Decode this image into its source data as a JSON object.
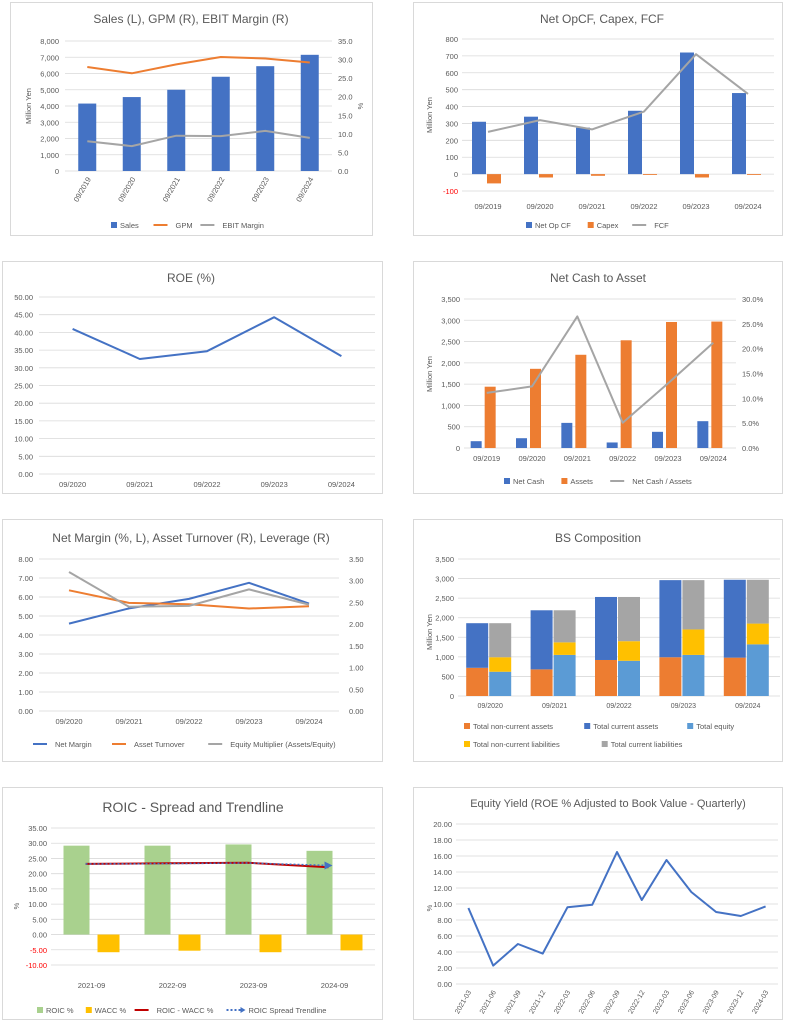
{
  "colors": {
    "blue": "#4472c4",
    "orange": "#ed7d31",
    "gray": "#a5a5a5",
    "yellow": "#ffc000",
    "lightblue": "#5b9bd5",
    "green": "#a9d18e",
    "red": "#c00000",
    "grid": "#d9d9d9",
    "text": "#595959",
    "negative": "#ff0000"
  },
  "chart_data": [
    {
      "id": "c1",
      "type": "bar",
      "title": "Sales (L), GPM (R), EBIT Margin (R)",
      "ylabel": "Million Yen",
      "y2label": "%",
      "categories": [
        "09/2019",
        "09/2020",
        "09/2021",
        "09/2022",
        "09/2023",
        "09/2024"
      ],
      "ylim": [
        0,
        8000
      ],
      "y2lim": [
        0,
        35
      ],
      "yticks": [
        "0",
        "1,000",
        "2,000",
        "3,000",
        "4,000",
        "5,000",
        "6,000",
        "7,000",
        "8,000"
      ],
      "y2ticks": [
        "0.0",
        "5.0",
        "10.0",
        "15.0",
        "20.0",
        "25.0",
        "30.0",
        "35.0"
      ],
      "series": [
        {
          "name": "Sales",
          "kind": "bar",
          "axis": "left",
          "color": "#4472c4",
          "values": [
            4150,
            4550,
            5000,
            5800,
            6450,
            7150
          ]
        },
        {
          "name": "GPM",
          "kind": "line",
          "axis": "right",
          "color": "#ed7d31",
          "values": [
            28.0,
            26.3,
            28.7,
            30.7,
            30.3,
            29.2
          ]
        },
        {
          "name": "EBIT Margin",
          "kind": "line",
          "axis": "right",
          "color": "#a5a5a5",
          "values": [
            8.0,
            6.7,
            9.5,
            9.4,
            10.8,
            8.9
          ]
        }
      ]
    },
    {
      "id": "c2",
      "type": "bar",
      "title": "Net OpCF, Capex, FCF",
      "ylabel": "Million Yen",
      "categories": [
        "09/2019",
        "09/2020",
        "09/2021",
        "09/2022",
        "09/2023",
        "09/2024"
      ],
      "ylim": [
        -100,
        800
      ],
      "yticks": [
        "-100",
        "0",
        "100",
        "200",
        "300",
        "400",
        "500",
        "600",
        "700",
        "800"
      ],
      "series": [
        {
          "name": "Net Op CF",
          "kind": "bar",
          "axis": "left",
          "color": "#4472c4",
          "values": [
            310,
            340,
            275,
            375,
            720,
            480
          ]
        },
        {
          "name": "Capex",
          "kind": "bar",
          "axis": "left",
          "color": "#ed7d31",
          "values": [
            -55,
            -20,
            -10,
            -5,
            -20,
            -5
          ]
        },
        {
          "name": "FCF",
          "kind": "line",
          "axis": "left",
          "color": "#a5a5a5",
          "values": [
            250,
            320,
            265,
            370,
            710,
            475
          ]
        }
      ]
    },
    {
      "id": "c3",
      "type": "line",
      "title": "ROE (%)",
      "categories": [
        "09/2020",
        "09/2021",
        "09/2022",
        "09/2023",
        "09/2024"
      ],
      "ylim": [
        0,
        50
      ],
      "yticks": [
        "0.00",
        "5.00",
        "10.00",
        "15.00",
        "20.00",
        "25.00",
        "30.00",
        "35.00",
        "40.00",
        "45.00",
        "50.00"
      ],
      "series": [
        {
          "kind": "line",
          "axis": "left",
          "color": "#4472c4",
          "values": [
            41.0,
            32.5,
            34.7,
            44.3,
            33.3
          ]
        }
      ]
    },
    {
      "id": "c4",
      "type": "bar",
      "title": "Net Cash to Asset",
      "ylabel": "Million Yen",
      "categories": [
        "09/2019",
        "09/2020",
        "09/2021",
        "09/2022",
        "09/2023",
        "09/2024"
      ],
      "ylim": [
        0,
        3500
      ],
      "y2lim": [
        0,
        30
      ],
      "yticks": [
        "0",
        "500",
        "1,000",
        "1,500",
        "2,000",
        "2,500",
        "3,000",
        "3,500"
      ],
      "y2ticks": [
        "0.0%",
        "5.0%",
        "10.0%",
        "15.0%",
        "20.0%",
        "25.0%",
        "30.0%"
      ],
      "series": [
        {
          "name": "Net Cash",
          "kind": "bar",
          "axis": "left",
          "color": "#4472c4",
          "values": [
            160,
            230,
            590,
            130,
            380,
            630
          ]
        },
        {
          "name": "Assets",
          "kind": "bar",
          "axis": "left",
          "color": "#ed7d31",
          "values": [
            1440,
            1860,
            2190,
            2530,
            2960,
            2970
          ]
        },
        {
          "name": "Net Cash / Assets",
          "kind": "line",
          "axis": "right",
          "color": "#a5a5a5",
          "values": [
            11.1,
            12.4,
            26.5,
            5.1,
            13.0,
            21.2
          ]
        }
      ]
    },
    {
      "id": "c5",
      "type": "line",
      "title": "Net Margin (%, L), Asset Turnover (R), Leverage (R)",
      "categories": [
        "09/2020",
        "09/2021",
        "09/2022",
        "09/2023",
        "09/2024"
      ],
      "ylim": [
        0,
        8
      ],
      "y2lim": [
        0,
        3.5
      ],
      "yticks": [
        "0.00",
        "1.00",
        "2.00",
        "3.00",
        "4.00",
        "5.00",
        "6.00",
        "7.00",
        "8.00"
      ],
      "y2ticks": [
        "0.00",
        "0.50",
        "1.00",
        "1.50",
        "2.00",
        "2.50",
        "3.00",
        "3.50"
      ],
      "series": [
        {
          "name": "Net Margin",
          "kind": "line",
          "axis": "left",
          "color": "#4472c4",
          "values": [
            4.6,
            5.4,
            5.9,
            6.75,
            5.65
          ]
        },
        {
          "name": "Asset Turnover",
          "kind": "line",
          "axis": "right",
          "color": "#ed7d31",
          "values": [
            2.78,
            2.49,
            2.46,
            2.36,
            2.41
          ]
        },
        {
          "name": "Equity Multiplier (Assets/Equity)",
          "kind": "line",
          "axis": "right",
          "color": "#a5a5a5",
          "values": [
            3.2,
            2.4,
            2.42,
            2.8,
            2.45
          ]
        }
      ]
    },
    {
      "id": "c6",
      "type": "bar",
      "title": "BS Composition",
      "ylabel": "Million Yen",
      "categories": [
        "09/2020",
        "09/2021",
        "09/2022",
        "09/2023",
        "09/2024"
      ],
      "ylim": [
        0,
        3500
      ],
      "yticks": [
        "0",
        "500",
        "1,000",
        "1,500",
        "2,000",
        "2,500",
        "3,000",
        "3,500"
      ],
      "series": [
        {
          "name": "Total non-current assets",
          "stack": "A",
          "color": "#ed7d31",
          "values": [
            720,
            680,
            920,
            990,
            980
          ]
        },
        {
          "name": "Total current assets",
          "stack": "A",
          "color": "#4472c4",
          "values": [
            1140,
            1510,
            1610,
            1970,
            1990
          ]
        },
        {
          "name": "Total equity",
          "stack": "B",
          "color": "#5b9bd5",
          "values": [
            620,
            1050,
            900,
            1050,
            1320
          ]
        },
        {
          "name": "Total non-current liabilities",
          "stack": "B",
          "color": "#ffc000",
          "values": [
            370,
            320,
            500,
            650,
            530
          ]
        },
        {
          "name": "Total current liabilities",
          "stack": "B",
          "color": "#a5a5a5",
          "values": [
            870,
            820,
            1130,
            1260,
            1120
          ]
        }
      ]
    },
    {
      "id": "c7",
      "type": "bar",
      "title": "ROIC - Spread and Trendline",
      "ylabel": "%",
      "categories": [
        "2021-09",
        "2022-09",
        "2023-09",
        "2024-09"
      ],
      "ylim": [
        -10,
        35
      ],
      "yticks": [
        "-10.00",
        "-5.00",
        "0.00",
        "5.00",
        "10.00",
        "15.00",
        "20.00",
        "25.00",
        "30.00",
        "35.00"
      ],
      "series": [
        {
          "name": "ROIC %",
          "kind": "bar",
          "color": "#a9d18e",
          "values": [
            29.2,
            29.2,
            29.6,
            27.5
          ]
        },
        {
          "name": "WACC %",
          "kind": "bar",
          "color": "#ffc000",
          "values": [
            -5.8,
            -5.3,
            -5.8,
            -5.2
          ]
        },
        {
          "name": "ROIC - WACC %",
          "kind": "line",
          "color": "#c00000",
          "values": [
            23.2,
            23.4,
            23.6,
            22.1
          ]
        },
        {
          "name": "ROIC Spread Trendline",
          "kind": "trend",
          "color": "#4472c4",
          "values": [
            23.2,
            23.3,
            23.5,
            22.7
          ]
        }
      ]
    },
    {
      "id": "c8",
      "type": "line",
      "title": "Equity Yield (ROE % Adjusted to Book Value - Quarterly)",
      "ylabel": "%",
      "categories": [
        "2021-03",
        "2021-06",
        "2021-09",
        "2021-12",
        "2022-03",
        "2022-06",
        "2022-09",
        "2022-12",
        "2023-03",
        "2023-06",
        "2023-09",
        "2023-12",
        "2024-03"
      ],
      "ylim": [
        0,
        20
      ],
      "yticks": [
        "0.00",
        "2.00",
        "4.00",
        "6.00",
        "8.00",
        "10.00",
        "12.00",
        "14.00",
        "16.00",
        "18.00",
        "20.00"
      ],
      "series": [
        {
          "kind": "line",
          "color": "#4472c4",
          "values": [
            9.5,
            2.3,
            5.0,
            3.8,
            9.6,
            9.9,
            16.5,
            10.5,
            15.5,
            11.5,
            9.0,
            8.5,
            9.7
          ]
        }
      ]
    }
  ]
}
